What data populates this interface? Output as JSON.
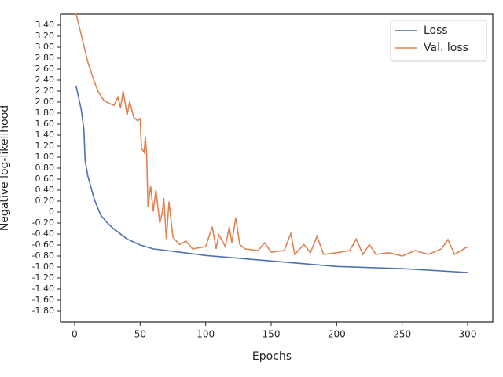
{
  "chart_data": {
    "type": "line",
    "xlabel": "Epochs",
    "ylabel": "Negative log-likelihood",
    "xlim": [
      -10.8,
      319.2
    ],
    "xticks": [
      0,
      50,
      100,
      150,
      200,
      250,
      300
    ],
    "ylim": [
      -2.0,
      3.6
    ],
    "yticks": [
      {
        "value": -1.8,
        "label": "-1.80"
      },
      {
        "value": -1.6,
        "label": "-1.60"
      },
      {
        "value": -1.4,
        "label": "-1.40"
      },
      {
        "value": -1.2,
        "label": "-1.20"
      },
      {
        "value": -1.0,
        "label": "-1.00"
      },
      {
        "value": -0.8,
        "label": "-0.80"
      },
      {
        "value": -0.6,
        "label": "-0.60"
      },
      {
        "value": -0.4,
        "label": "-0.40"
      },
      {
        "value": -0.2,
        "label": "-0.20"
      },
      0,
      {
        "value": 0.2,
        "label": "0.20"
      },
      {
        "value": 0.4,
        "label": "0.40"
      },
      {
        "value": 0.6,
        "label": "0.60"
      },
      {
        "value": 0.8,
        "label": "0.80"
      },
      {
        "value": 1.0,
        "label": "1.00"
      },
      {
        "value": 1.2,
        "label": "1.20"
      },
      {
        "value": 1.4,
        "label": "1.40"
      },
      {
        "value": 1.6,
        "label": "1.60"
      },
      {
        "value": 1.8,
        "label": "1.80"
      },
      {
        "value": 2.0,
        "label": "2.00"
      },
      {
        "value": 2.2,
        "label": "2.20"
      },
      {
        "value": 2.4,
        "label": "2.40"
      },
      {
        "value": 2.6,
        "label": "2.60"
      },
      {
        "value": 2.8,
        "label": "2.80"
      },
      {
        "value": 3.0,
        "label": "3.00"
      },
      {
        "value": 3.2,
        "label": "3.20"
      },
      {
        "value": 3.4,
        "label": "3.40"
      }
    ],
    "legend": "upper right",
    "series": [
      {
        "name": "Loss",
        "color": "#4c72b0",
        "x": [
          1,
          5,
          7,
          8,
          10,
          15,
          20,
          25,
          30,
          40,
          50,
          60,
          80,
          100,
          150,
          200,
          250,
          300
        ],
        "values": [
          2.3,
          1.87,
          1.51,
          0.94,
          0.66,
          0.23,
          -0.06,
          -0.2,
          -0.31,
          -0.49,
          -0.6,
          -0.67,
          -0.73,
          -0.79,
          -0.89,
          -0.99,
          -1.03,
          -1.1
        ]
      },
      {
        "name": "Val. loss",
        "color": "#dd8452",
        "x": [
          1,
          5,
          10,
          15,
          18,
          22,
          25,
          30,
          33,
          35,
          37,
          40,
          42,
          45,
          48,
          50,
          51,
          53,
          54,
          55,
          56,
          58,
          60,
          62,
          65,
          67,
          68,
          70,
          72,
          75,
          80,
          85,
          90,
          100,
          105,
          108,
          110,
          115,
          118,
          120,
          123,
          126,
          130,
          140,
          145,
          150,
          160,
          165,
          168,
          175,
          180,
          185,
          190,
          200,
          210,
          215,
          220,
          225,
          230,
          240,
          250,
          260,
          270,
          280,
          285,
          290,
          295,
          300
        ],
        "values": [
          3.61,
          3.23,
          2.73,
          2.37,
          2.19,
          2.04,
          1.99,
          1.94,
          2.09,
          1.9,
          2.2,
          1.76,
          2.01,
          1.73,
          1.66,
          1.7,
          1.16,
          1.09,
          1.37,
          1.01,
          0.09,
          0.47,
          0.01,
          0.4,
          -0.2,
          0.01,
          0.26,
          -0.49,
          0.19,
          -0.46,
          -0.59,
          -0.53,
          -0.67,
          -0.63,
          -0.27,
          -0.67,
          -0.41,
          -0.63,
          -0.27,
          -0.56,
          -0.1,
          -0.59,
          -0.67,
          -0.7,
          -0.56,
          -0.73,
          -0.7,
          -0.39,
          -0.77,
          -0.59,
          -0.74,
          -0.44,
          -0.77,
          -0.74,
          -0.7,
          -0.49,
          -0.77,
          -0.59,
          -0.77,
          -0.74,
          -0.8,
          -0.7,
          -0.77,
          -0.67,
          -0.5,
          -0.77,
          -0.7,
          -0.63
        ]
      }
    ]
  }
}
